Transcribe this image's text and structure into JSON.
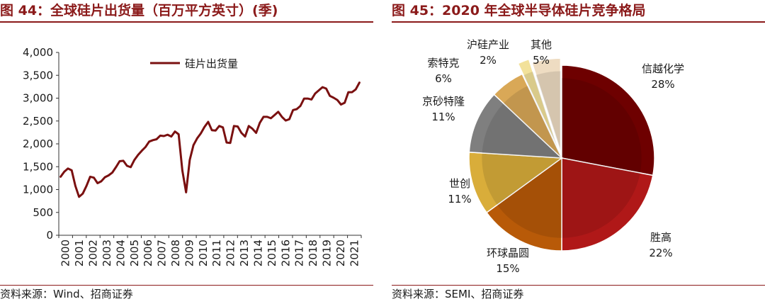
{
  "left": {
    "title": "图 44：全球硅片出货量（百万平方英寸）(季)",
    "source": "资料来源：Wind、招商证券"
  },
  "right": {
    "title": "图 45：2020 年全球半导体硅片竞争格局",
    "source": "资料来源：SEMI、招商证券"
  },
  "colors": {
    "accent": "#8b1a1a",
    "line": "#7a1010"
  },
  "chart_data": [
    {
      "type": "line",
      "title": "",
      "legend": [
        "硅片出货量"
      ],
      "legend_position": "top-center",
      "ylim": [
        0,
        4000
      ],
      "yticks": [
        "0",
        "500",
        "1,000",
        "1,500",
        "2,000",
        "2,500",
        "3,000",
        "3,500",
        "4,000"
      ],
      "xticks": [
        "2000",
        "2001",
        "2002",
        "2003",
        "2004",
        "2005",
        "2006",
        "2007",
        "2008",
        "2009",
        "2010",
        "2011",
        "2012",
        "2013",
        "2014",
        "2015",
        "2016",
        "2017",
        "2018",
        "2019",
        "2020",
        "2021"
      ],
      "series": [
        {
          "name": "硅片出货量",
          "values": [
            1280,
            1390,
            1460,
            1420,
            1080,
            840,
            910,
            1080,
            1280,
            1260,
            1140,
            1180,
            1270,
            1310,
            1370,
            1490,
            1620,
            1630,
            1520,
            1490,
            1650,
            1760,
            1850,
            1930,
            2050,
            2080,
            2100,
            2180,
            2170,
            2200,
            2160,
            2270,
            2210,
            1420,
            940,
            1650,
            1970,
            2120,
            2230,
            2370,
            2480,
            2300,
            2290,
            2390,
            2360,
            2030,
            2020,
            2390,
            2380,
            2240,
            2160,
            2390,
            2330,
            2240,
            2460,
            2590,
            2590,
            2560,
            2630,
            2700,
            2590,
            2510,
            2540,
            2740,
            2760,
            2830,
            2990,
            2990,
            2970,
            3100,
            3170,
            3240,
            3210,
            3050,
            3010,
            2960,
            2860,
            2900,
            3130,
            3130,
            3190,
            3340
          ]
        }
      ]
    },
    {
      "type": "pie",
      "title": "",
      "slices": [
        {
          "label": "信越化学",
          "value": 28,
          "pct": "28%",
          "color": "#6e0000"
        },
        {
          "label": "胜高",
          "value": 22,
          "pct": "22%",
          "color": "#b01818"
        },
        {
          "label": "环球晶圆",
          "value": 15,
          "pct": "15%",
          "color": "#b85a08"
        },
        {
          "label": "世创",
          "value": 11,
          "pct": "11%",
          "color": "#d9ad3a"
        },
        {
          "label": "京砂特隆",
          "value": 11,
          "pct": "11%",
          "color": "#7f7f7f"
        },
        {
          "label": "索特克",
          "value": 6,
          "pct": "6%",
          "color": "#d9a857"
        },
        {
          "label": "沪硅产业",
          "value": 2,
          "pct": "2%",
          "color": "#f2e19a"
        },
        {
          "label": "其他",
          "value": 5,
          "pct": "5%",
          "color": "#eedcc2"
        }
      ]
    }
  ]
}
